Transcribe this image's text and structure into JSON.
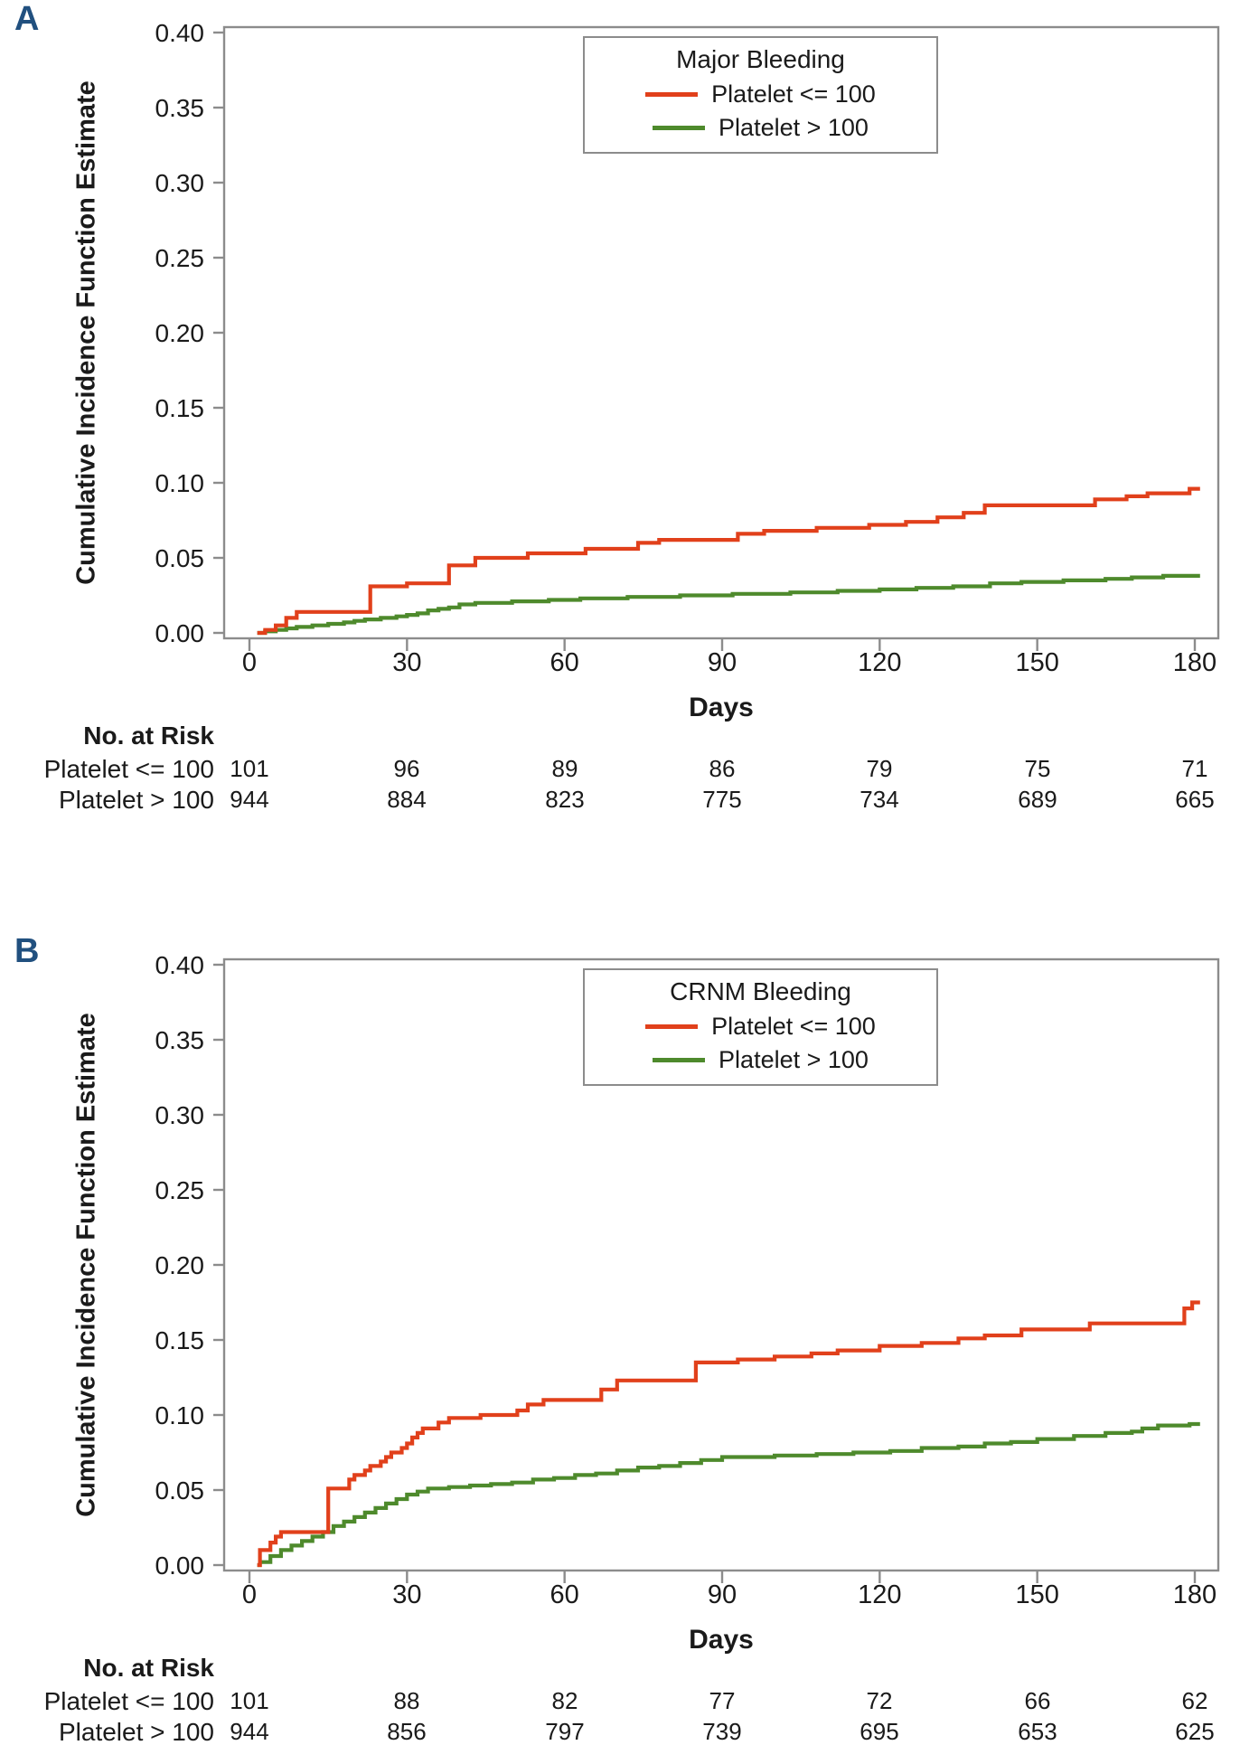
{
  "colors": {
    "series_red": "#E1401B",
    "series_green": "#4E8A2C",
    "axis_gray": "#8C8C8C",
    "text": "#1A1A1A",
    "panel_letter_blue": "#21507F"
  },
  "chart_data": [
    {
      "type": "line",
      "step": true,
      "panel_label": "A",
      "legend_title": "Major Bleeding",
      "xlabel": "Days",
      "ylabel": "Cumulative Incidence Function Estimate",
      "xlim": [
        0,
        180
      ],
      "ylim": [
        0,
        0.4
      ],
      "x_axis": {
        "tick_values": [
          0,
          30,
          60,
          90,
          120,
          150,
          180
        ],
        "tick_labels": [
          "0",
          "30",
          "60",
          "90",
          "120",
          "150",
          "180"
        ]
      },
      "y_axis": {
        "tick_values": [
          0,
          0.05,
          0.1,
          0.15,
          0.2,
          0.25,
          0.3,
          0.35,
          0.4
        ],
        "tick_labels": [
          "0.00",
          "0.05",
          "0.10",
          "0.15",
          "0.20",
          "0.25",
          "0.30",
          "0.35",
          "0.40"
        ]
      },
      "series": [
        {
          "name": "Platelet <= 100",
          "color": "#E1401B",
          "steps": [
            [
              1.5,
              0
            ],
            [
              3,
              0.002
            ],
            [
              5,
              0.005
            ],
            [
              7,
              0.01
            ],
            [
              9,
              0.014
            ],
            [
              23,
              0.031
            ],
            [
              30,
              0.033
            ],
            [
              38,
              0.045
            ],
            [
              43,
              0.05
            ],
            [
              53,
              0.053
            ],
            [
              64,
              0.056
            ],
            [
              74,
              0.06
            ],
            [
              78,
              0.062
            ],
            [
              93,
              0.066
            ],
            [
              98,
              0.068
            ],
            [
              108,
              0.07
            ],
            [
              118,
              0.072
            ],
            [
              125,
              0.074
            ],
            [
              131,
              0.077
            ],
            [
              136,
              0.08
            ],
            [
              140,
              0.085
            ],
            [
              161,
              0.089
            ],
            [
              167,
              0.091
            ],
            [
              171,
              0.093
            ],
            [
              179,
              0.096
            ]
          ]
        },
        {
          "name": "Platelet > 100",
          "color": "#4E8A2C",
          "steps": [
            [
              1.5,
              0
            ],
            [
              3,
              0.001
            ],
            [
              5,
              0.002
            ],
            [
              7,
              0.003
            ],
            [
              9,
              0.004
            ],
            [
              12,
              0.005
            ],
            [
              15,
              0.006
            ],
            [
              18,
              0.007
            ],
            [
              20,
              0.008
            ],
            [
              22,
              0.009
            ],
            [
              25,
              0.01
            ],
            [
              28,
              0.011
            ],
            [
              30,
              0.012
            ],
            [
              32,
              0.013
            ],
            [
              34,
              0.015
            ],
            [
              36,
              0.016
            ],
            [
              38,
              0.017
            ],
            [
              40,
              0.019
            ],
            [
              43,
              0.02
            ],
            [
              50,
              0.021
            ],
            [
              57,
              0.022
            ],
            [
              63,
              0.023
            ],
            [
              72,
              0.024
            ],
            [
              82,
              0.025
            ],
            [
              92,
              0.026
            ],
            [
              103,
              0.027
            ],
            [
              112,
              0.028
            ],
            [
              120,
              0.029
            ],
            [
              127,
              0.03
            ],
            [
              134,
              0.031
            ],
            [
              141,
              0.033
            ],
            [
              147,
              0.034
            ],
            [
              155,
              0.035
            ],
            [
              163,
              0.036
            ],
            [
              168,
              0.037
            ],
            [
              174,
              0.038
            ]
          ]
        }
      ],
      "risk_table": {
        "header": "No. at Risk",
        "rows": [
          {
            "label": "Platelet <= 100",
            "values": [
              "101",
              "96",
              "89",
              "86",
              "79",
              "75",
              "71"
            ]
          },
          {
            "label": "Platelet > 100",
            "values": [
              "944",
              "884",
              "823",
              "775",
              "734",
              "689",
              "665"
            ]
          }
        ]
      }
    },
    {
      "type": "line",
      "step": true,
      "panel_label": "B",
      "legend_title": "CRNM Bleeding",
      "xlabel": "Days",
      "ylabel": "Cumulative Incidence Function Estimate",
      "xlim": [
        0,
        180
      ],
      "ylim": [
        0,
        0.4
      ],
      "x_axis": {
        "tick_values": [
          0,
          30,
          60,
          90,
          120,
          150,
          180
        ],
        "tick_labels": [
          "0",
          "30",
          "60",
          "90",
          "120",
          "150",
          "180"
        ]
      },
      "y_axis": {
        "tick_values": [
          0,
          0.05,
          0.1,
          0.15,
          0.2,
          0.25,
          0.3,
          0.35,
          0.4
        ],
        "tick_labels": [
          "0.00",
          "0.05",
          "0.10",
          "0.15",
          "0.20",
          "0.25",
          "0.30",
          "0.35",
          "0.40"
        ]
      },
      "series": [
        {
          "name": "Platelet <= 100",
          "color": "#E1401B",
          "steps": [
            [
              1.5,
              0
            ],
            [
              2,
              0.01
            ],
            [
              4,
              0.015
            ],
            [
              5,
              0.019
            ],
            [
              6,
              0.022
            ],
            [
              15,
              0.051
            ],
            [
              19,
              0.057
            ],
            [
              20,
              0.06
            ],
            [
              22,
              0.063
            ],
            [
              23,
              0.066
            ],
            [
              25,
              0.069
            ],
            [
              26,
              0.072
            ],
            [
              27,
              0.075
            ],
            [
              29,
              0.078
            ],
            [
              30,
              0.081
            ],
            [
              31,
              0.085
            ],
            [
              32,
              0.088
            ],
            [
              33,
              0.091
            ],
            [
              36,
              0.095
            ],
            [
              38,
              0.098
            ],
            [
              44,
              0.1
            ],
            [
              51,
              0.103
            ],
            [
              53,
              0.107
            ],
            [
              56,
              0.11
            ],
            [
              67,
              0.117
            ],
            [
              70,
              0.123
            ],
            [
              85,
              0.135
            ],
            [
              93,
              0.137
            ],
            [
              100,
              0.139
            ],
            [
              107,
              0.141
            ],
            [
              112,
              0.143
            ],
            [
              120,
              0.146
            ],
            [
              128,
              0.148
            ],
            [
              135,
              0.151
            ],
            [
              140,
              0.153
            ],
            [
              147,
              0.157
            ],
            [
              160,
              0.161
            ],
            [
              178,
              0.171
            ],
            [
              179.5,
              0.175
            ]
          ]
        },
        {
          "name": "Platelet > 100",
          "color": "#4E8A2C",
          "steps": [
            [
              1.5,
              0
            ],
            [
              2,
              0.002
            ],
            [
              4,
              0.006
            ],
            [
              6,
              0.01
            ],
            [
              8,
              0.013
            ],
            [
              10,
              0.016
            ],
            [
              12,
              0.019
            ],
            [
              14,
              0.022
            ],
            [
              16,
              0.026
            ],
            [
              18,
              0.029
            ],
            [
              20,
              0.032
            ],
            [
              22,
              0.035
            ],
            [
              24,
              0.038
            ],
            [
              26,
              0.041
            ],
            [
              28,
              0.044
            ],
            [
              30,
              0.047
            ],
            [
              32,
              0.049
            ],
            [
              34,
              0.051
            ],
            [
              38,
              0.052
            ],
            [
              42,
              0.053
            ],
            [
              46,
              0.054
            ],
            [
              50,
              0.055
            ],
            [
              54,
              0.057
            ],
            [
              58,
              0.058
            ],
            [
              62,
              0.06
            ],
            [
              66,
              0.061
            ],
            [
              70,
              0.063
            ],
            [
              74,
              0.065
            ],
            [
              78,
              0.066
            ],
            [
              82,
              0.068
            ],
            [
              86,
              0.07
            ],
            [
              90,
              0.072
            ],
            [
              100,
              0.073
            ],
            [
              108,
              0.074
            ],
            [
              115,
              0.075
            ],
            [
              122,
              0.076
            ],
            [
              128,
              0.078
            ],
            [
              135,
              0.079
            ],
            [
              140,
              0.081
            ],
            [
              145,
              0.082
            ],
            [
              150,
              0.084
            ],
            [
              157,
              0.086
            ],
            [
              163,
              0.088
            ],
            [
              168,
              0.089
            ],
            [
              170,
              0.091
            ],
            [
              173,
              0.093
            ],
            [
              179,
              0.094
            ]
          ]
        }
      ],
      "risk_table": {
        "header": "No. at Risk",
        "rows": [
          {
            "label": "Platelet <= 100",
            "values": [
              "101",
              "88",
              "82",
              "77",
              "72",
              "66",
              "62"
            ]
          },
          {
            "label": "Platelet > 100",
            "values": [
              "944",
              "856",
              "797",
              "739",
              "695",
              "653",
              "625"
            ]
          }
        ]
      }
    }
  ]
}
